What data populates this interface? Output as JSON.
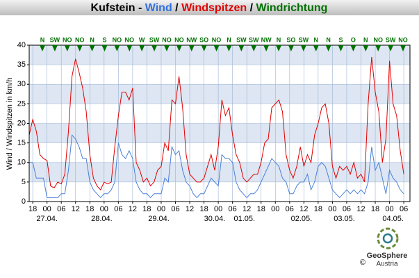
{
  "chart_data": {
    "type": "line",
    "title_parts": [
      {
        "text": "Kufstein - ",
        "color": "#000000"
      },
      {
        "text": "Wind",
        "color": "#2f6fe0"
      },
      {
        "text": " / ",
        "color": "#000000"
      },
      {
        "text": "Windspitzen",
        "color": "#e00000"
      },
      {
        "text": " / ",
        "color": "#000000"
      },
      {
        "text": "Windrichtung",
        "color": "#007000"
      }
    ],
    "y_label": "Wind / Windspitzen in km/h",
    "directions": [
      "N",
      "SW",
      "NO",
      "NO",
      "N",
      "S",
      "NO",
      "NO",
      "W",
      "SW",
      "NO",
      "NO",
      "NW",
      "SO",
      "NO",
      "N",
      "SW",
      "SW",
      "NW",
      "N",
      "SO",
      "SW",
      "N",
      "N",
      "S",
      "O",
      "N",
      "NO",
      "SW",
      "NO"
    ],
    "direction_color": "#007000",
    "xlim": [
      16.5,
      176.6
    ],
    "ylim": [
      0,
      40
    ],
    "yticks": [
      0,
      5,
      10,
      15,
      20,
      25,
      30,
      35,
      40
    ],
    "xticks": [
      {
        "value": 18,
        "label": "18"
      },
      {
        "value": 24,
        "label": "00"
      },
      {
        "value": 30,
        "label": "06"
      },
      {
        "value": 36,
        "label": "12"
      },
      {
        "value": 42,
        "label": "18"
      },
      {
        "value": 48,
        "label": "00"
      },
      {
        "value": 54,
        "label": "06"
      },
      {
        "value": 60,
        "label": "12"
      },
      {
        "value": 66,
        "label": "18"
      },
      {
        "value": 72,
        "label": "00"
      },
      {
        "value": 78,
        "label": "06"
      },
      {
        "value": 84,
        "label": "12"
      },
      {
        "value": 90,
        "label": "18"
      },
      {
        "value": 96,
        "label": "00"
      },
      {
        "value": 102,
        "label": "06"
      },
      {
        "value": 108,
        "label": "12"
      },
      {
        "value": 114,
        "label": "18"
      },
      {
        "value": 120,
        "label": "00"
      },
      {
        "value": 126,
        "label": "06"
      },
      {
        "value": 132,
        "label": "12"
      },
      {
        "value": 138,
        "label": "18"
      },
      {
        "value": 144,
        "label": "00"
      },
      {
        "value": 150,
        "label": "06"
      },
      {
        "value": 156,
        "label": "12"
      },
      {
        "value": 162,
        "label": "18"
      },
      {
        "value": 168,
        "label": "00"
      },
      {
        "value": 174,
        "label": "06"
      }
    ],
    "date_labels": [
      {
        "value": 24,
        "label": "27.04."
      },
      {
        "value": 47,
        "label": "28.04."
      },
      {
        "value": 71,
        "label": "29.04."
      },
      {
        "value": 94.5,
        "label": "30.04."
      },
      {
        "value": 107,
        "label": "01.05."
      },
      {
        "value": 131,
        "label": "02.05."
      },
      {
        "value": 149,
        "label": "03.05."
      },
      {
        "value": 169.5,
        "label": "04.05."
      }
    ],
    "grid": true,
    "x": [
      16.5,
      18,
      19.5,
      21,
      22.5,
      24,
      25.5,
      27,
      28.5,
      30,
      31.5,
      33,
      34.5,
      36,
      37.5,
      39,
      40.5,
      42,
      43.5,
      45,
      46.5,
      48,
      49.5,
      51,
      52.5,
      54,
      55.5,
      57,
      58.5,
      60,
      61.5,
      63,
      64.5,
      66,
      67.5,
      69,
      70.5,
      72,
      73.5,
      75,
      76.5,
      78,
      79.5,
      81,
      82.5,
      84,
      85.5,
      87,
      88.5,
      90,
      91.5,
      93,
      94.5,
      96,
      97.5,
      99,
      100.5,
      102,
      103.5,
      105,
      106.5,
      108,
      109.5,
      111,
      112.5,
      114,
      115.5,
      117,
      118.5,
      120,
      121.5,
      123,
      124.5,
      126,
      127.5,
      129,
      130.5,
      132,
      133.5,
      135,
      136.5,
      138,
      139.5,
      141,
      142.5,
      144,
      145.5,
      147,
      148.5,
      150,
      151.5,
      153,
      154.5,
      156,
      157.5,
      159,
      160.5,
      162,
      163.5,
      165,
      166.5,
      168,
      169.5,
      171,
      172.5,
      174
    ],
    "series": [
      {
        "name": "Windspitzen",
        "color": "#e00000",
        "values": [
          17,
          21,
          18,
          12,
          11,
          10.5,
          4,
          3.5,
          5,
          4.5,
          7,
          18,
          32,
          36.5,
          33,
          29,
          23,
          12,
          6,
          4,
          3,
          5,
          4.5,
          5,
          14,
          22,
          28,
          28,
          26,
          29,
          10,
          8,
          5,
          6,
          4,
          5,
          8,
          9,
          15,
          13,
          26,
          25,
          32,
          24,
          12,
          7,
          6,
          5,
          5,
          6,
          9,
          12,
          8,
          14,
          26,
          22,
          24,
          17,
          12,
          10,
          6,
          5,
          6,
          7,
          7,
          10,
          15,
          16,
          24,
          25,
          26,
          23,
          12,
          8,
          6,
          9,
          14,
          9,
          12,
          10,
          17,
          20,
          24,
          25,
          20,
          9,
          6,
          9,
          8,
          9,
          7,
          10,
          6,
          7,
          5,
          25,
          37,
          28,
          23,
          10,
          16,
          36,
          25,
          22,
          13,
          7
        ]
      },
      {
        "name": "Wind",
        "color": "#4a7fd8",
        "values": [
          10,
          10,
          6,
          6,
          6,
          1,
          1,
          1,
          1,
          2,
          2,
          8,
          17,
          16,
          14,
          11,
          11,
          5,
          3,
          2,
          1,
          2,
          2,
          3,
          5,
          15,
          12,
          11,
          13,
          11,
          5,
          3,
          2,
          2,
          1,
          2,
          2,
          2,
          6,
          5,
          14,
          12,
          13,
          8,
          5,
          4,
          2,
          1,
          2,
          2,
          4,
          6,
          5,
          4,
          12,
          11,
          11,
          10,
          5,
          3,
          2,
          1,
          2,
          2,
          3,
          5,
          7,
          9,
          11,
          10,
          9,
          6,
          5,
          2,
          2,
          4,
          5,
          5,
          7,
          3,
          5,
          9,
          10,
          9,
          6,
          3,
          2,
          1,
          2,
          3,
          2,
          3,
          2,
          3,
          2,
          5,
          14,
          8,
          10,
          6,
          2,
          8,
          6,
          5,
          3,
          2
        ]
      }
    ],
    "logo": {
      "name": "GeoSphere",
      "sub": "Austria",
      "copyright": "©"
    }
  }
}
